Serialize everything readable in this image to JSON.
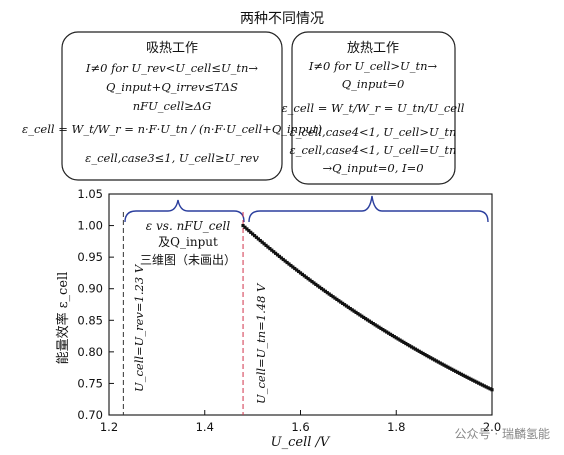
{
  "figure_title": "两种不同情况",
  "left_box": {
    "title": "吸热工作",
    "lines": [
      "I≠0 for U_rev<U_cell≤U_tn→",
      "Q_input+Q_irrev≤TΔS",
      "nFU_cell≥ΔG",
      "ε_cell = W_t/W_r = n·F·U_tn / (n·F·U_cell+Q_input)",
      "ε_cell,case3≤1, U_cell≥U_rev"
    ]
  },
  "right_box": {
    "title": "放热工作",
    "lines": [
      "I≠0 for U_cell>U_tn→",
      "Q_input=0",
      "ε_cell = W_t/W_r = U_tn/U_cell",
      "ε_cell,case4<1, U_cell>U_tn",
      "ε_cell,case4<1, U_cell=U_tn",
      "→Q_input=0, I=0"
    ]
  },
  "plot_note": {
    "line1": "ε vs. nFU_cell",
    "line2": "及Q_input",
    "line3": "三维图（未画出）"
  },
  "vline_labels": {
    "rev": "U_cell=U_rev=1.23 V",
    "tn": "U_cell=U_tn=1.48 V"
  },
  "watermark": "公众号 · 瑞麟氢能",
  "colors": {
    "brace": "#2b3f9e",
    "tn_line": "#d2334a",
    "rev_line": "#333333",
    "curve": "#111111"
  },
  "chart_data": {
    "type": "line",
    "title": "两种不同情况",
    "xlabel": "U_cell /V",
    "ylabel": "能量效率 ε_cell",
    "xlim": [
      1.2,
      2.0
    ],
    "ylim": [
      0.7,
      1.05
    ],
    "xticks": [
      1.2,
      1.4,
      1.6,
      1.8,
      2.0
    ],
    "yticks": [
      0.7,
      0.75,
      0.8,
      0.85,
      0.9,
      0.95,
      1.0,
      1.05
    ],
    "grid": false,
    "vlines": [
      {
        "x": 1.23,
        "label": "U_cell=U_rev=1.23 V",
        "style": "dashed"
      },
      {
        "x": 1.48,
        "label": "U_cell=U_tn=1.48 V",
        "style": "dashed"
      }
    ],
    "series": [
      {
        "style": "dotted",
        "x": [
          1.48,
          1.52,
          1.56,
          1.6,
          1.64,
          1.68,
          1.72,
          1.76,
          1.8,
          1.84,
          1.88,
          1.92,
          1.96,
          2.0
        ],
        "y": [
          1.0,
          0.974,
          0.949,
          0.925,
          0.902,
          0.881,
          0.86,
          0.841,
          0.822,
          0.804,
          0.787,
          0.771,
          0.755,
          0.74
        ]
      }
    ]
  }
}
